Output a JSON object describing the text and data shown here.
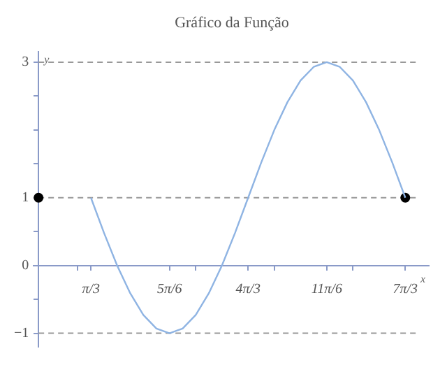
{
  "chart_data": {
    "type": "line",
    "title": "Gráfico da Função",
    "xlabel": "x",
    "ylabel": "y",
    "series": [
      {
        "color": "#8fb4e3",
        "x": [
          1.047,
          1.309,
          1.571,
          1.833,
          2.094,
          2.356,
          2.618,
          2.88,
          3.142,
          3.403,
          3.665,
          3.927,
          4.189,
          4.451,
          4.712,
          4.974,
          5.236,
          5.498,
          5.76,
          6.021,
          6.283,
          6.545,
          6.807,
          7.069,
          7.33
        ],
        "values": [
          1,
          0.48,
          0,
          -0.41,
          -0.73,
          -0.93,
          -1,
          -0.93,
          -0.73,
          -0.41,
          0,
          0.48,
          1,
          1.52,
          2,
          2.41,
          2.73,
          2.93,
          3,
          2.93,
          2.73,
          2.41,
          2,
          1.52,
          1
        ]
      },
      {
        "type": "scatter",
        "color": "#000000",
        "x": [
          0,
          7.33
        ],
        "values": [
          1,
          1
        ]
      }
    ],
    "xlim": [
      -0.1,
      7.8
    ],
    "ylim": [
      -1.2,
      3.15
    ],
    "xticks": [
      {
        "value": 0.785,
        "label": null
      },
      {
        "value": 1.047,
        "label": "π/3"
      },
      {
        "value": 2.618,
        "label": "5π/6"
      },
      {
        "value": 3.142,
        "label": null
      },
      {
        "value": 4.189,
        "label": "4π/3"
      },
      {
        "value": 4.712,
        "label": null
      },
      {
        "value": 5.76,
        "label": "11π/6"
      },
      {
        "value": 6.283,
        "label": null
      },
      {
        "value": 7.33,
        "label": "7π/3"
      }
    ],
    "yticks": [
      -1,
      {
        "value": -0.5,
        "label": null
      },
      0,
      {
        "value": 0.5,
        "label": null
      },
      1,
      {
        "value": 1.5,
        "label": null
      },
      {
        "value": 2,
        "label": null
      },
      {
        "value": 2.5,
        "label": null
      },
      3
    ],
    "ref_lines": [
      {
        "axis": "y",
        "value": 3,
        "color": "#999999",
        "line_style": "dashed"
      },
      {
        "axis": "y",
        "value": 1,
        "color": "#999999",
        "line_style": "dashed"
      },
      {
        "axis": "y",
        "value": -1,
        "color": "#999999",
        "line_style": "dashed"
      }
    ],
    "grid": false,
    "legend": false,
    "line_style": "solid"
  }
}
